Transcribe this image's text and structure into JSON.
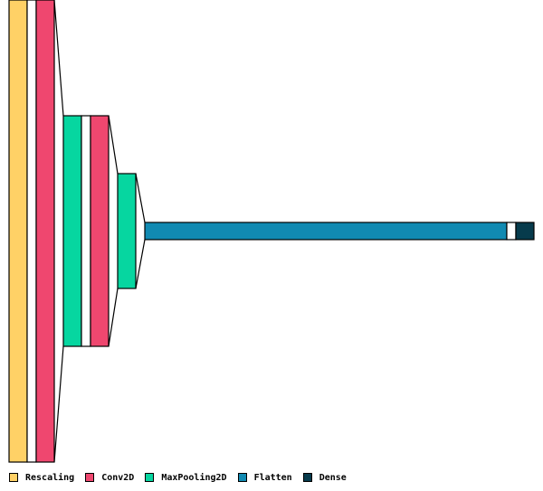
{
  "diagram": {
    "type": "neural-network-layered-view",
    "layers": [
      {
        "type": "Rescaling",
        "color": "#FFD166"
      },
      {
        "type": "spacer",
        "color": "#FFFFFF"
      },
      {
        "type": "Conv2D",
        "color": "#EF476F"
      },
      {
        "type": "MaxPooling2D",
        "color": "#06D6A0"
      },
      {
        "type": "spacer",
        "color": "#FFFFFF"
      },
      {
        "type": "Conv2D",
        "color": "#EF476F"
      },
      {
        "type": "MaxPooling2D",
        "color": "#06D6A0"
      },
      {
        "type": "Flatten",
        "color": "#118AB2"
      },
      {
        "type": "spacer",
        "color": "#FFFFFF"
      },
      {
        "type": "Dense",
        "color": "#073B4C"
      }
    ]
  },
  "legend": [
    {
      "label": "Rescaling",
      "color": "#FFD166"
    },
    {
      "label": "Conv2D",
      "color": "#EF476F"
    },
    {
      "label": "MaxPooling2D",
      "color": "#06D6A0"
    },
    {
      "label": "Flatten",
      "color": "#118AB2"
    },
    {
      "label": "Dense",
      "color": "#073B4C"
    }
  ]
}
